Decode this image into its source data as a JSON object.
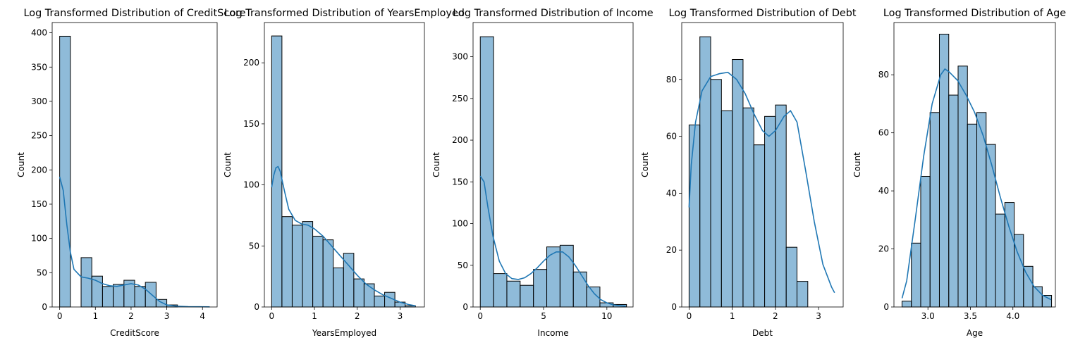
{
  "chart_data": [
    {
      "type": "bar",
      "title": "Log Transformed Distribution of CreditScore",
      "xlabel": "CreditScore",
      "ylabel": "Count",
      "xlim": [
        -0.21,
        4.41
      ],
      "ylim": [
        0,
        415
      ],
      "xticks": [
        0,
        1,
        2,
        3,
        4
      ],
      "yticks": [
        0,
        50,
        100,
        150,
        200,
        250,
        300,
        350,
        400
      ],
      "bins": [
        [
          0,
          0.3,
          395
        ],
        [
          0.3,
          0.6,
          0
        ],
        [
          0.6,
          0.9,
          72
        ],
        [
          0.9,
          1.2,
          45
        ],
        [
          1.2,
          1.5,
          30
        ],
        [
          1.5,
          1.8,
          33
        ],
        [
          1.8,
          2.1,
          39
        ],
        [
          2.1,
          2.4,
          30
        ],
        [
          2.4,
          2.7,
          36
        ],
        [
          2.7,
          3.0,
          11
        ],
        [
          3.0,
          3.3,
          3
        ]
      ],
      "kde": [
        [
          0,
          190
        ],
        [
          0.1,
          170
        ],
        [
          0.2,
          120
        ],
        [
          0.3,
          80
        ],
        [
          0.4,
          55
        ],
        [
          0.6,
          44
        ],
        [
          0.8,
          42
        ],
        [
          1.0,
          39
        ],
        [
          1.2,
          34
        ],
        [
          1.4,
          31
        ],
        [
          1.6,
          30
        ],
        [
          1.8,
          32
        ],
        [
          2.0,
          34
        ],
        [
          2.2,
          32
        ],
        [
          2.4,
          26
        ],
        [
          2.6,
          17
        ],
        [
          2.8,
          8
        ],
        [
          3.0,
          3
        ],
        [
          3.3,
          1
        ],
        [
          3.6,
          0.5
        ],
        [
          4.2,
          0.2
        ]
      ]
    },
    {
      "type": "bar",
      "title": "Log Transformed Distribution of YearsEmployed",
      "xlabel": "YearsEmployed",
      "ylabel": "Count",
      "xlim": [
        -0.17,
        3.57
      ],
      "ylim": [
        0,
        233
      ],
      "xticks": [
        0,
        1,
        2,
        3
      ],
      "yticks": [
        0,
        50,
        100,
        150,
        200
      ],
      "bins": [
        [
          0,
          0.24,
          222
        ],
        [
          0.24,
          0.48,
          74
        ],
        [
          0.48,
          0.72,
          67
        ],
        [
          0.72,
          0.96,
          70
        ],
        [
          0.96,
          1.2,
          58
        ],
        [
          1.2,
          1.44,
          55
        ],
        [
          1.44,
          1.68,
          32
        ],
        [
          1.68,
          1.92,
          44
        ],
        [
          1.92,
          2.16,
          23
        ],
        [
          2.16,
          2.4,
          19
        ],
        [
          2.4,
          2.64,
          9
        ],
        [
          2.64,
          2.88,
          12
        ],
        [
          2.88,
          3.12,
          4
        ],
        [
          3.12,
          3.36,
          1
        ]
      ],
      "kde": [
        [
          0,
          98
        ],
        [
          0.05,
          108
        ],
        [
          0.1,
          114
        ],
        [
          0.15,
          115
        ],
        [
          0.2,
          111
        ],
        [
          0.3,
          95
        ],
        [
          0.4,
          80
        ],
        [
          0.55,
          71
        ],
        [
          0.7,
          68
        ],
        [
          0.85,
          67
        ],
        [
          1.0,
          64
        ],
        [
          1.2,
          58
        ],
        [
          1.4,
          50
        ],
        [
          1.6,
          42
        ],
        [
          1.8,
          34
        ],
        [
          2.0,
          26
        ],
        [
          2.2,
          19
        ],
        [
          2.4,
          14
        ],
        [
          2.6,
          10
        ],
        [
          2.8,
          7
        ],
        [
          3.0,
          4
        ],
        [
          3.2,
          2
        ],
        [
          3.36,
          1
        ]
      ]
    },
    {
      "type": "bar",
      "title": "Log Transformed Distribution of Income",
      "xlabel": "Income",
      "ylabel": "Count",
      "xlim": [
        -0.57,
        12.07
      ],
      "ylim": [
        0,
        341
      ],
      "xticks": [
        0,
        5,
        10
      ],
      "yticks": [
        0,
        50,
        100,
        150,
        200,
        250,
        300
      ],
      "bins": [
        [
          0,
          1.05,
          324
        ],
        [
          1.05,
          2.1,
          40
        ],
        [
          2.1,
          3.15,
          31
        ],
        [
          3.15,
          4.2,
          26
        ],
        [
          4.2,
          5.25,
          45
        ],
        [
          5.25,
          6.3,
          72
        ],
        [
          6.3,
          7.35,
          74
        ],
        [
          7.35,
          8.4,
          42
        ],
        [
          8.4,
          9.45,
          24
        ],
        [
          9.45,
          10.5,
          5
        ],
        [
          10.5,
          11.55,
          3
        ]
      ],
      "kde": [
        [
          0,
          157
        ],
        [
          0.3,
          150
        ],
        [
          0.6,
          120
        ],
        [
          1.0,
          85
        ],
        [
          1.5,
          55
        ],
        [
          2.0,
          40
        ],
        [
          2.5,
          34
        ],
        [
          3.0,
          33
        ],
        [
          3.5,
          35
        ],
        [
          4.0,
          40
        ],
        [
          4.5,
          47
        ],
        [
          5.0,
          55
        ],
        [
          5.5,
          62
        ],
        [
          6.0,
          66
        ],
        [
          6.5,
          66
        ],
        [
          7.0,
          60
        ],
        [
          7.5,
          50
        ],
        [
          8.0,
          38
        ],
        [
          8.5,
          26
        ],
        [
          9.0,
          16
        ],
        [
          9.5,
          9
        ],
        [
          10.0,
          5
        ],
        [
          10.5,
          2.5
        ],
        [
          11.0,
          1.5
        ],
        [
          11.5,
          1
        ]
      ]
    },
    {
      "type": "bar",
      "title": "Log Transformed Distribution of Debt",
      "xlabel": "Debt",
      "ylabel": "Count",
      "xlim": [
        -0.17,
        3.57
      ],
      "ylim": [
        0,
        100
      ],
      "xticks": [
        0,
        1,
        2,
        3
      ],
      "yticks": [
        0,
        20,
        40,
        60,
        80
      ],
      "bins": [
        [
          0,
          0.25,
          64
        ],
        [
          0.25,
          0.5,
          95
        ],
        [
          0.5,
          0.75,
          80
        ],
        [
          0.75,
          1.0,
          69
        ],
        [
          1.0,
          1.25,
          87
        ],
        [
          1.25,
          1.5,
          70
        ],
        [
          1.5,
          1.75,
          57
        ],
        [
          1.75,
          2.0,
          67
        ],
        [
          2.0,
          2.25,
          71
        ],
        [
          2.25,
          2.5,
          21
        ],
        [
          2.5,
          2.75,
          9
        ]
      ],
      "kde": [
        [
          0,
          35
        ],
        [
          0.05,
          50
        ],
        [
          0.15,
          65
        ],
        [
          0.3,
          76
        ],
        [
          0.5,
          81
        ],
        [
          0.7,
          82
        ],
        [
          0.9,
          82.5
        ],
        [
          1.1,
          80
        ],
        [
          1.3,
          75
        ],
        [
          1.5,
          68
        ],
        [
          1.7,
          62
        ],
        [
          1.85,
          60
        ],
        [
          2.0,
          62
        ],
        [
          2.2,
          67
        ],
        [
          2.35,
          69
        ],
        [
          2.5,
          65
        ],
        [
          2.7,
          48
        ],
        [
          2.9,
          30
        ],
        [
          3.1,
          15
        ],
        [
          3.3,
          7
        ],
        [
          3.37,
          5
        ]
      ]
    },
    {
      "type": "bar",
      "title": "Log Transformed Distribution of Age",
      "xlabel": "Age",
      "ylabel": "Count",
      "xlim": [
        2.6,
        4.5
      ],
      "ylim": [
        0,
        98
      ],
      "xticks": [
        3.0,
        3.5,
        4.0
      ],
      "yticks": [
        0,
        20,
        40,
        60,
        80
      ],
      "tick_labels": [
        "3.0",
        "3.5",
        "4.0"
      ],
      "bins": [
        [
          2.695,
          2.805,
          2
        ],
        [
          2.805,
          2.915,
          22
        ],
        [
          2.915,
          3.025,
          45
        ],
        [
          3.025,
          3.135,
          67
        ],
        [
          3.135,
          3.245,
          94
        ],
        [
          3.245,
          3.355,
          73
        ],
        [
          3.355,
          3.465,
          83
        ],
        [
          3.465,
          3.575,
          63
        ],
        [
          3.575,
          3.685,
          67
        ],
        [
          3.685,
          3.795,
          56
        ],
        [
          3.795,
          3.905,
          32
        ],
        [
          3.905,
          4.015,
          36
        ],
        [
          4.015,
          4.125,
          25
        ],
        [
          4.125,
          4.235,
          14
        ],
        [
          4.235,
          4.345,
          7
        ],
        [
          4.345,
          4.455,
          4
        ]
      ],
      "kde": [
        [
          2.695,
          3
        ],
        [
          2.75,
          9
        ],
        [
          2.85,
          30
        ],
        [
          2.95,
          52
        ],
        [
          3.05,
          70
        ],
        [
          3.15,
          80
        ],
        [
          3.2,
          82
        ],
        [
          3.25,
          81
        ],
        [
          3.35,
          78
        ],
        [
          3.45,
          73
        ],
        [
          3.55,
          67
        ],
        [
          3.65,
          59
        ],
        [
          3.75,
          49
        ],
        [
          3.85,
          38
        ],
        [
          3.95,
          28
        ],
        [
          4.05,
          19
        ],
        [
          4.15,
          12
        ],
        [
          4.25,
          7
        ],
        [
          4.35,
          4
        ],
        [
          4.45,
          2.5
        ]
      ]
    }
  ]
}
